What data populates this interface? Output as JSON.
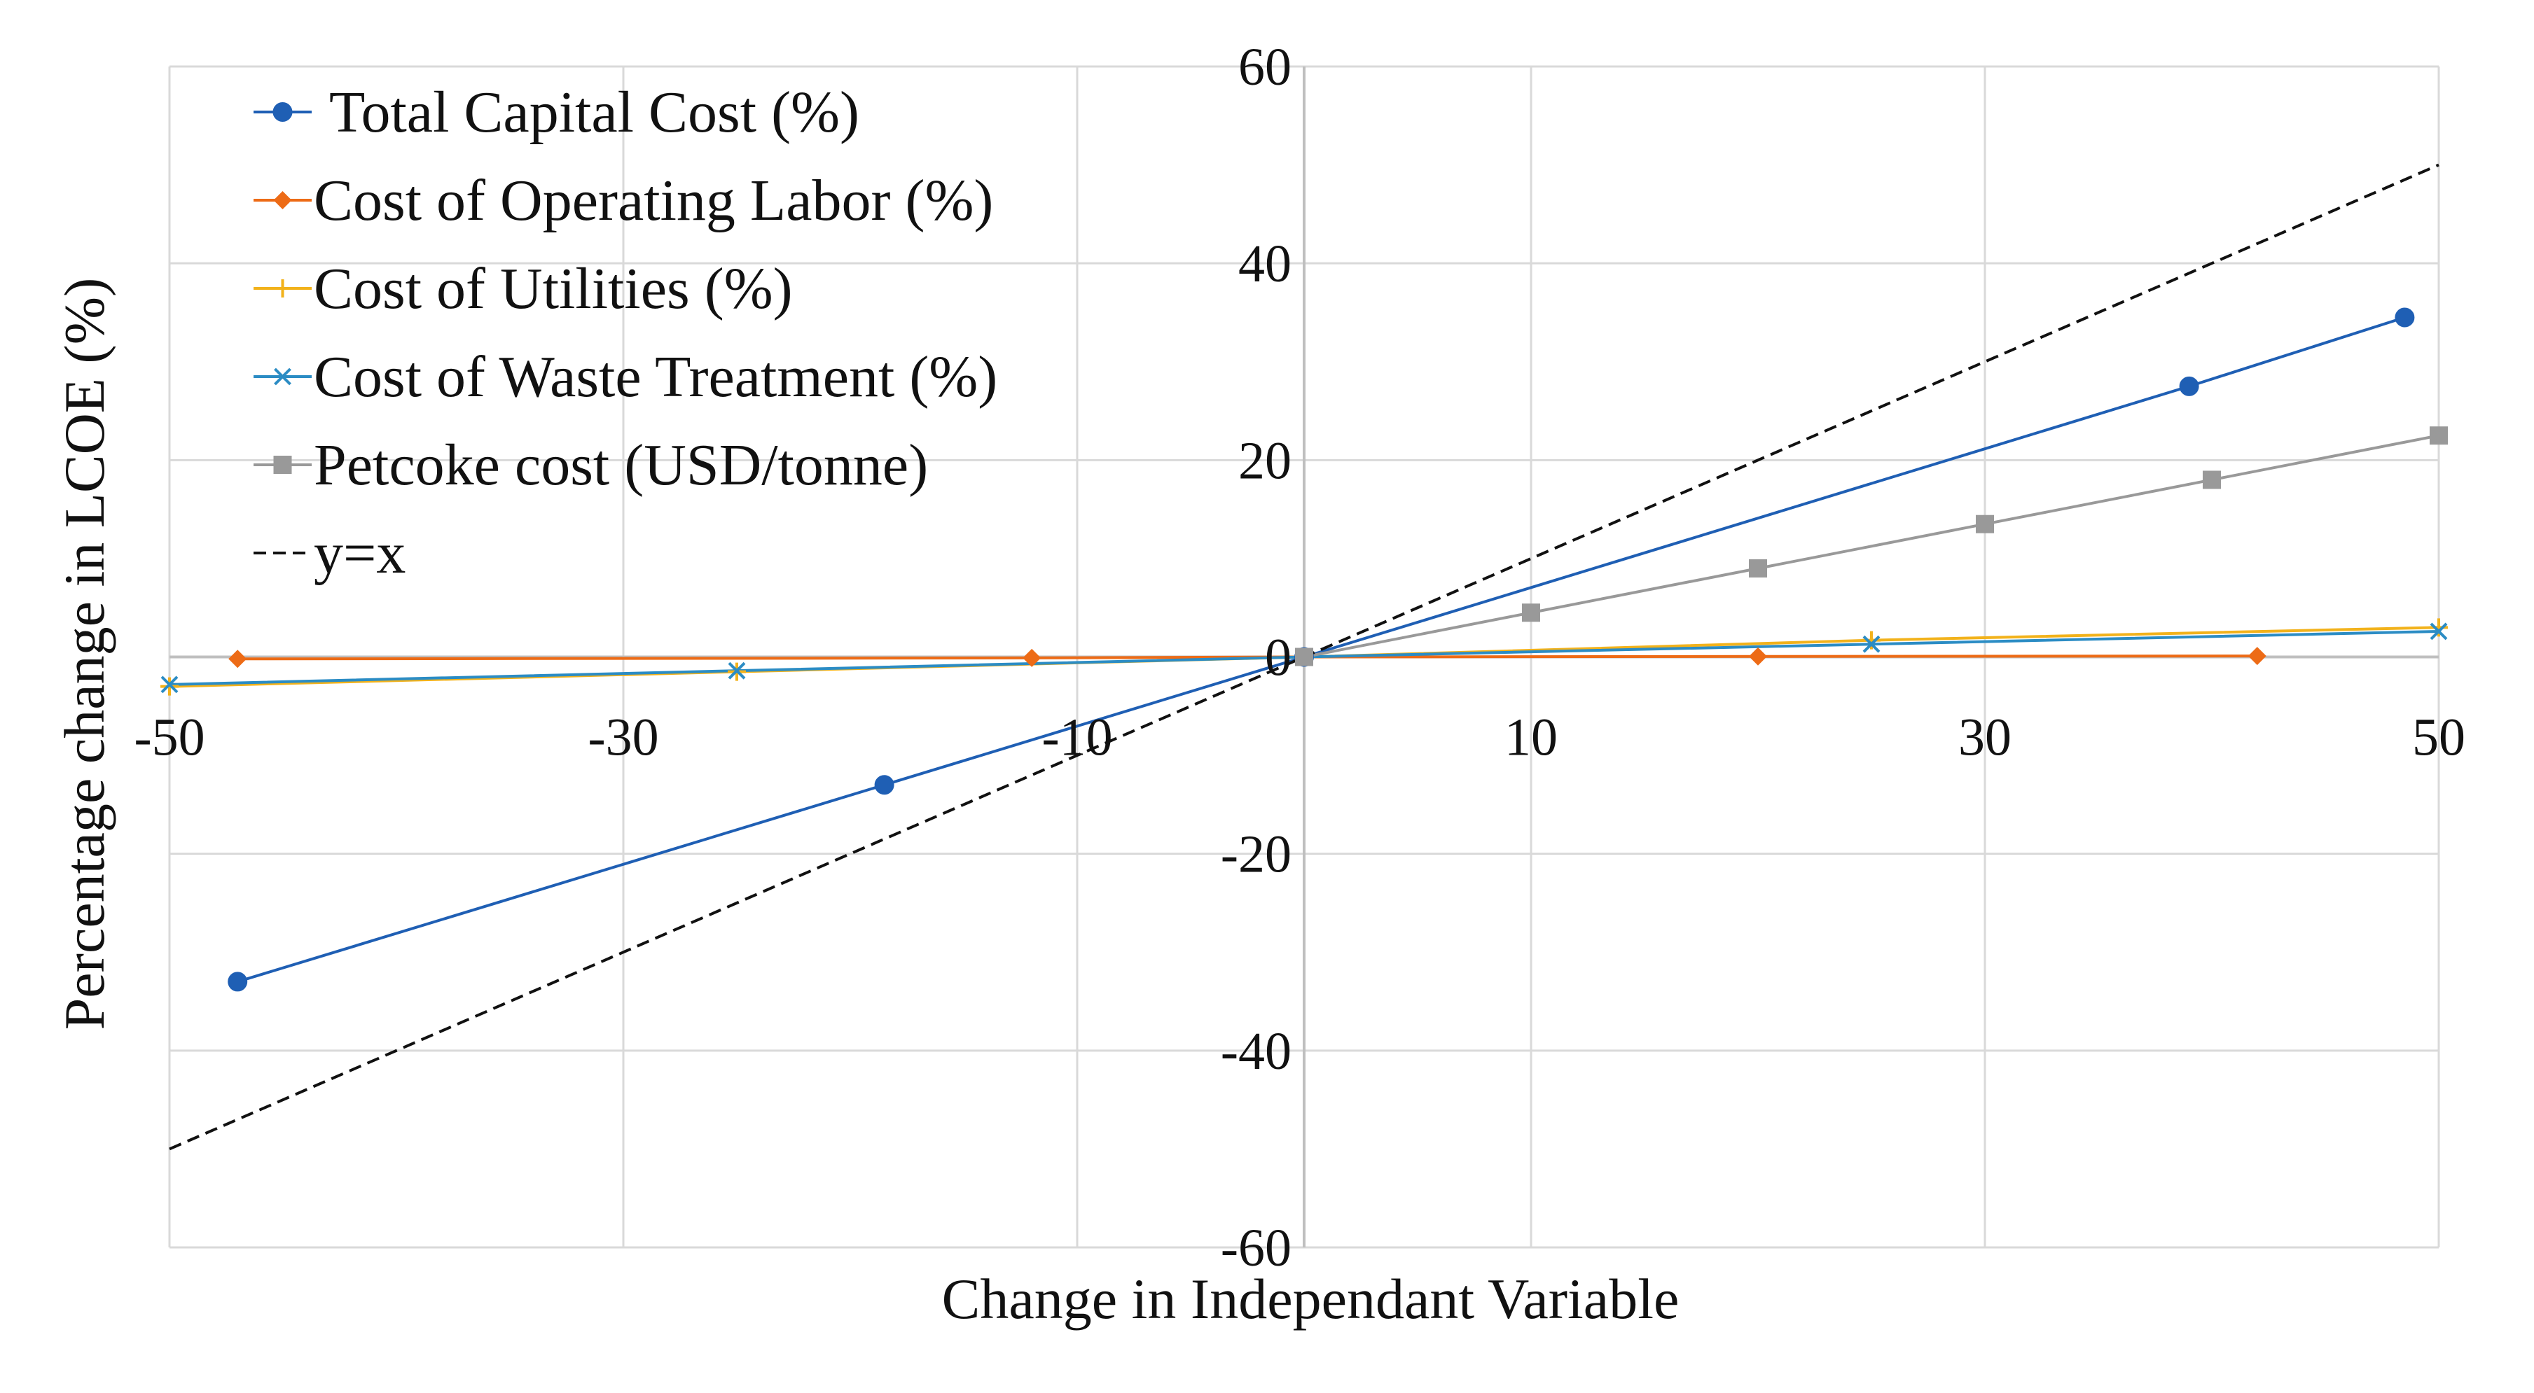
{
  "chart_data": {
    "type": "line",
    "title": "",
    "xlabel": "Change in Independant Variable",
    "ylabel": "Percentage change in LCOE (%)",
    "xlim": [
      -50,
      50
    ],
    "ylim": [
      -60,
      60
    ],
    "xticks": [
      -50,
      -30,
      -10,
      10,
      30,
      50
    ],
    "yticks": [
      60,
      40,
      20,
      0,
      -20,
      -40,
      -60
    ],
    "grid": true,
    "legend_position": "top-left",
    "series": [
      {
        "name": "Total Capital Cost (%)",
        "color": "#1f5fb4",
        "marker": "circle",
        "dash": "",
        "x": [
          -47,
          -18.5,
          0,
          39,
          48.5
        ],
        "y": [
          -33,
          -13,
          0,
          27.5,
          34.5
        ]
      },
      {
        "name": "Cost of Operating Labor (%)",
        "color": "#ed6b16",
        "marker": "diamond",
        "dash": "",
        "x": [
          -47,
          -12,
          0,
          20,
          42
        ],
        "y": [
          -0.2,
          -0.1,
          0,
          0.05,
          0.1
        ]
      },
      {
        "name": "Cost of Utilities (%)",
        "color": "#f2b21b",
        "marker": "plus",
        "dash": "",
        "x": [
          -50,
          -25,
          0,
          25,
          50
        ],
        "y": [
          -3,
          -1.5,
          0,
          1.7,
          3
        ]
      },
      {
        "name": "Cost of Waste Treatment (%)",
        "color": "#2b8cc4",
        "marker": "x",
        "dash": "",
        "x": [
          -50,
          -25,
          0,
          25,
          50
        ],
        "y": [
          -2.8,
          -1.4,
          0,
          1.3,
          2.6
        ]
      },
      {
        "name": "Petcoke cost (USD/tonne)",
        "color": "#999999",
        "marker": "square",
        "dash": "",
        "x": [
          0,
          10,
          20,
          30,
          40,
          50
        ],
        "y": [
          0,
          4.5,
          9,
          13.5,
          18,
          22.5
        ]
      },
      {
        "name": "y=x",
        "color": "#111111",
        "marker": "none",
        "dash": "dashed",
        "x": [
          -50,
          50
        ],
        "y": [
          -50,
          50
        ]
      }
    ]
  }
}
